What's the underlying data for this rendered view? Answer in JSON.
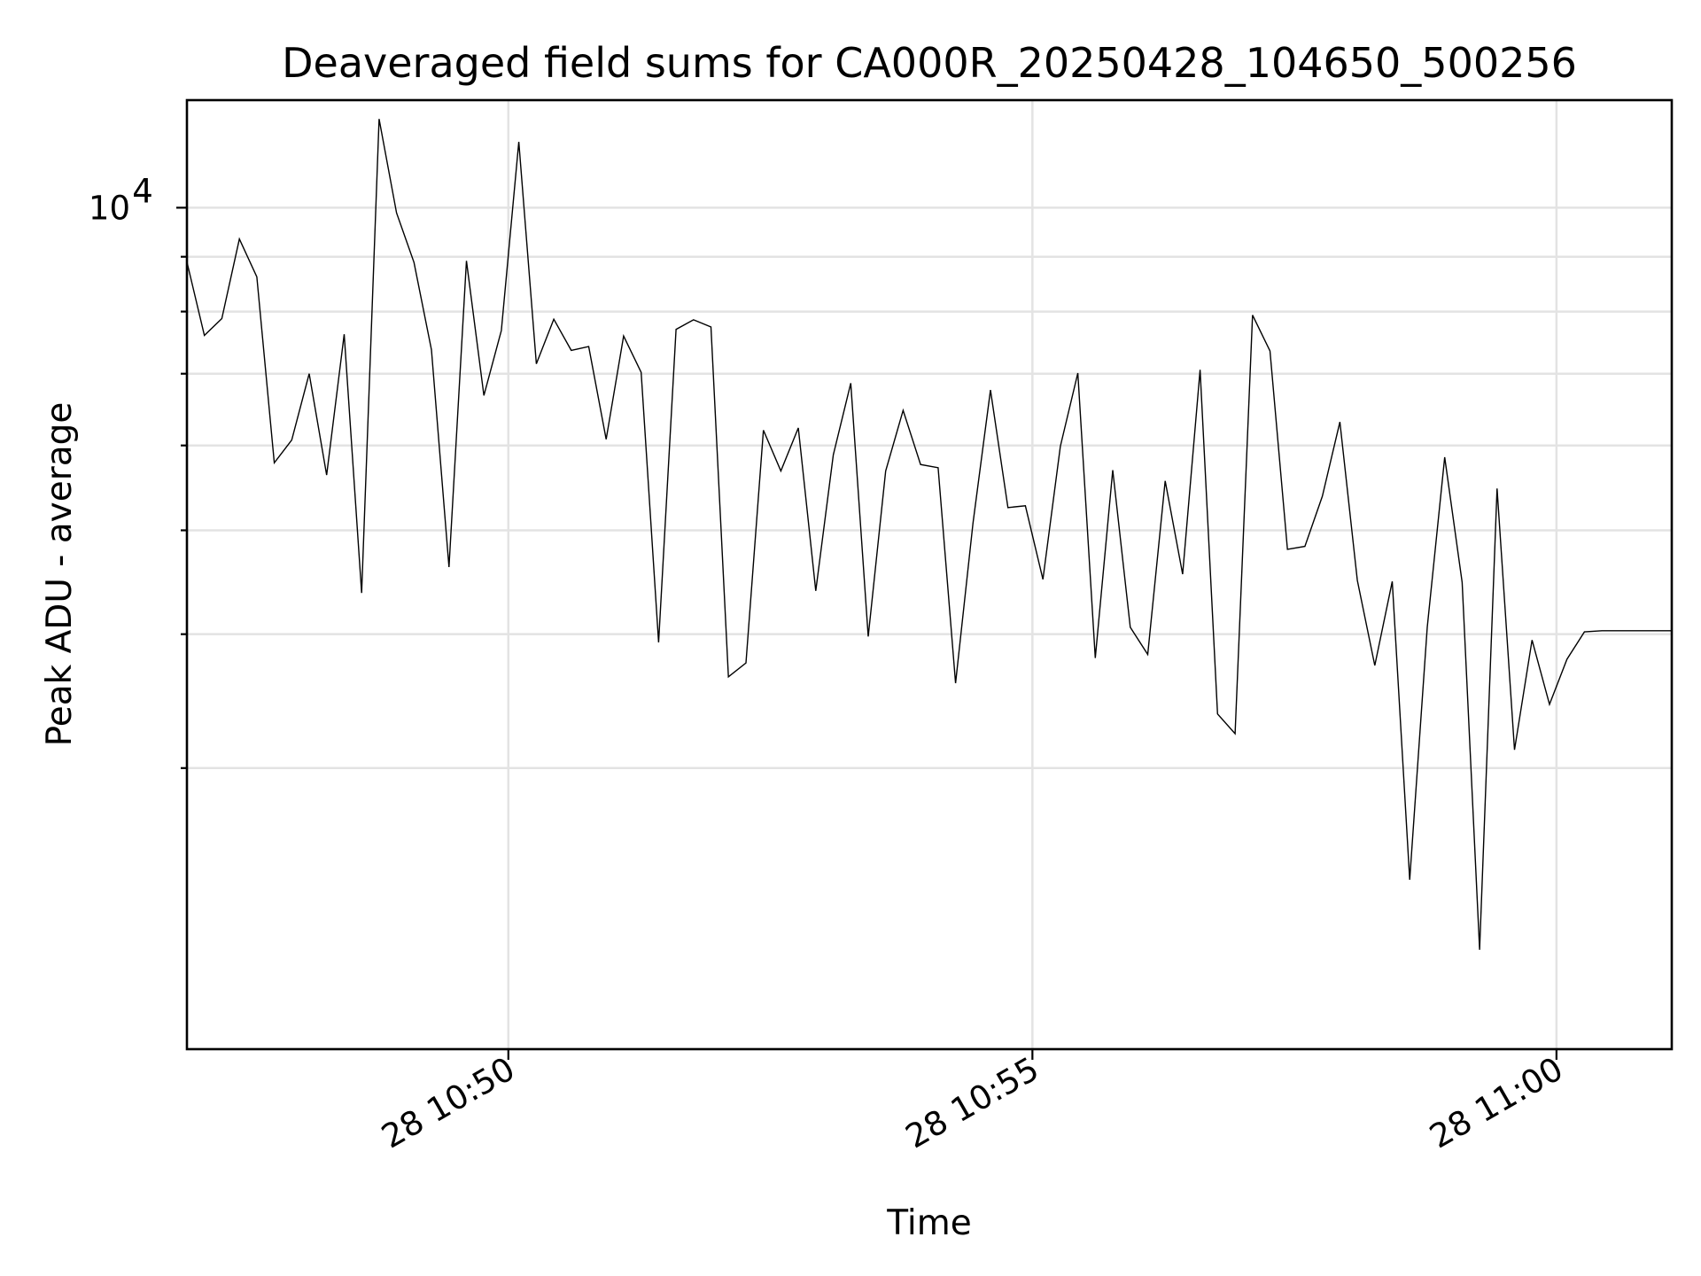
{
  "chart_data": {
    "type": "line",
    "title": "Deaveraged field sums for CA000R_20250428_104650_500256",
    "xlabel": "Time",
    "ylabel": "Peak ADU - average",
    "yscale": "log",
    "grid": true,
    "line_color": "#000000",
    "grid_color": "#e3e3e3",
    "xlim": [
      "2025-04-28T10:46:56",
      "2025-04-28T11:01:06"
    ],
    "ylim": [
      1640,
      12600
    ],
    "x_ticks": [
      {
        "value": "2025-04-28T10:50:00",
        "label": "28 10:50"
      },
      {
        "value": "2025-04-28T10:55:00",
        "label": "28 10:55"
      },
      {
        "value": "2025-04-28T11:00:00",
        "label": "28 11:00"
      }
    ],
    "y_ticks": [
      {
        "value": 10000,
        "label": "10",
        "exponent": "4"
      }
    ],
    "y_minor_ticks": [
      3000,
      4000,
      5000,
      6000,
      7000,
      8000,
      9000
    ],
    "series": [
      {
        "x": [
          "2025-04-28T10:46:56",
          "2025-04-28T10:47:06",
          "2025-04-28T10:47:16",
          "2025-04-28T10:47:26",
          "2025-04-28T10:47:36",
          "2025-04-28T10:47:46",
          "2025-04-28T10:47:56",
          "2025-04-28T10:48:06",
          "2025-04-28T10:48:16",
          "2025-04-28T10:48:26",
          "2025-04-28T10:48:36",
          "2025-04-28T10:48:46",
          "2025-04-28T10:48:56",
          "2025-04-28T10:49:06",
          "2025-04-28T10:49:16",
          "2025-04-28T10:49:26",
          "2025-04-28T10:49:36",
          "2025-04-28T10:49:46",
          "2025-04-28T10:49:56",
          "2025-04-28T10:50:06",
          "2025-04-28T10:50:16",
          "2025-04-28T10:50:26",
          "2025-04-28T10:50:36",
          "2025-04-28T10:50:46",
          "2025-04-28T10:50:56",
          "2025-04-28T10:51:06",
          "2025-04-28T10:51:16",
          "2025-04-28T10:51:26",
          "2025-04-28T10:51:36",
          "2025-04-28T10:51:46",
          "2025-04-28T10:51:56",
          "2025-04-28T10:52:06",
          "2025-04-28T10:52:16",
          "2025-04-28T10:52:26",
          "2025-04-28T10:52:36",
          "2025-04-28T10:52:46",
          "2025-04-28T10:52:56",
          "2025-04-28T10:53:06",
          "2025-04-28T10:53:16",
          "2025-04-28T10:53:26",
          "2025-04-28T10:53:36",
          "2025-04-28T10:53:46",
          "2025-04-28T10:53:56",
          "2025-04-28T10:54:06",
          "2025-04-28T10:54:16",
          "2025-04-28T10:54:26",
          "2025-04-28T10:54:36",
          "2025-04-28T10:54:46",
          "2025-04-28T10:54:56",
          "2025-04-28T10:55:06",
          "2025-04-28T10:55:16",
          "2025-04-28T10:55:26",
          "2025-04-28T10:55:36",
          "2025-04-28T10:55:46",
          "2025-04-28T10:55:56",
          "2025-04-28T10:56:06",
          "2025-04-28T10:56:16",
          "2025-04-28T10:56:26",
          "2025-04-28T10:56:36",
          "2025-04-28T10:56:46",
          "2025-04-28T10:56:56",
          "2025-04-28T10:57:06",
          "2025-04-28T10:57:16",
          "2025-04-28T10:57:26",
          "2025-04-28T10:57:36",
          "2025-04-28T10:57:46",
          "2025-04-28T10:57:56",
          "2025-04-28T10:58:06",
          "2025-04-28T10:58:16",
          "2025-04-28T10:58:26",
          "2025-04-28T10:58:36",
          "2025-04-28T10:58:46",
          "2025-04-28T10:58:56",
          "2025-04-28T10:59:06",
          "2025-04-28T10:59:16",
          "2025-04-28T10:59:26",
          "2025-04-28T10:59:36",
          "2025-04-28T10:59:46",
          "2025-04-28T10:59:56",
          "2025-04-28T11:00:06",
          "2025-04-28T11:00:16",
          "2025-04-28T11:00:26",
          "2025-04-28T11:00:36",
          "2025-04-28T11:00:46",
          "2025-04-28T11:00:56",
          "2025-04-28T11:01:06"
        ],
        "y": [
          8900,
          7600,
          7880,
          9350,
          8620,
          5780,
          6070,
          7000,
          5630,
          7620,
          4370,
          12100,
          9890,
          8890,
          7370,
          4620,
          8920,
          6680,
          7680,
          11520,
          7150,
          7870,
          7360,
          7420,
          6080,
          7590,
          7020,
          3930,
          7700,
          7860,
          7740,
          3650,
          3760,
          6200,
          5680,
          6230,
          4390,
          5880,
          6860,
          3980,
          5680,
          6470,
          5760,
          5720,
          3600,
          5080,
          6760,
          5250,
          5270,
          4500,
          5990,
          7010,
          3800,
          5690,
          4060,
          3830,
          5560,
          4550,
          7060,
          3370,
          3230,
          7940,
          7350,
          4800,
          4830,
          5380,
          6310,
          4490,
          3740,
          4480,
          2360,
          4060,
          5850,
          4470,
          2030,
          5470,
          3120,
          3950,
          3440,
          3790,
          4020,
          4030,
          4030,
          4030,
          4030,
          4030
        ]
      }
    ]
  }
}
